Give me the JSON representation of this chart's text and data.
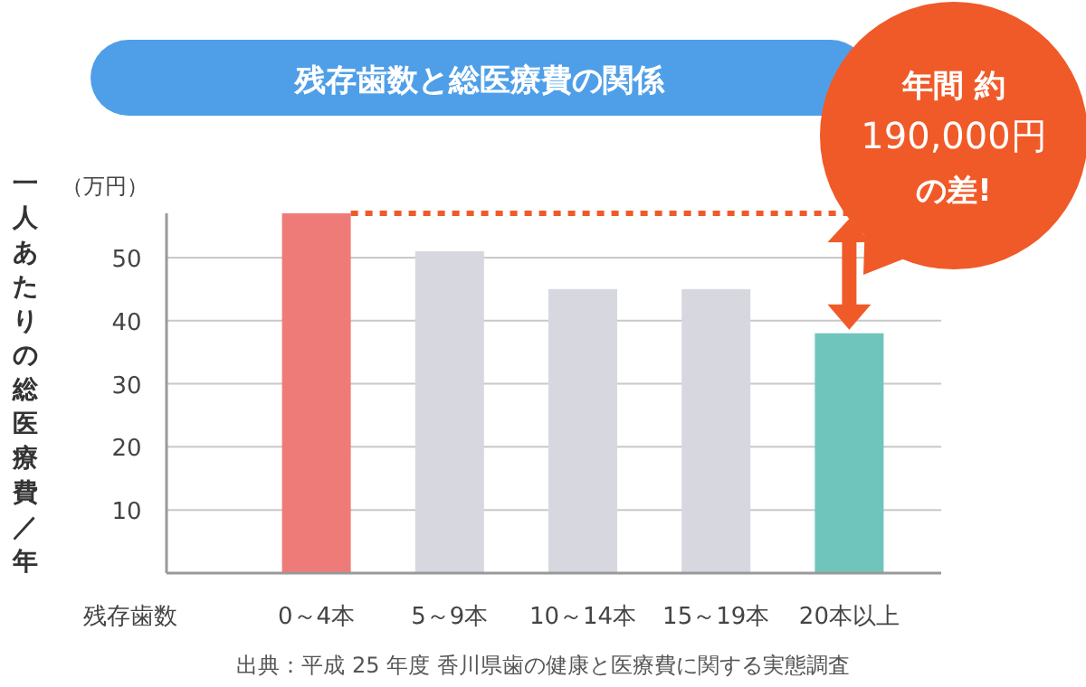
{
  "chart_data": {
    "type": "bar",
    "title": "残存歯数と総医療費の関係",
    "ylabel": "一人あたりの総医療費／年",
    "xlabel": "残存歯数",
    "categories": [
      "0～4本",
      "5～9本",
      "10～14本",
      "15～19本",
      "20本以上"
    ],
    "values": [
      57,
      51,
      45,
      45,
      38
    ],
    "colors": [
      "#ef7b78",
      "#d7d8df",
      "#d7d8df",
      "#d7d8df",
      "#6fc5bc"
    ],
    "ylim": [
      0,
      57
    ],
    "yticks": [
      10,
      20,
      30,
      40,
      50
    ],
    "grid": "y",
    "ref_lines": [
      {
        "axis": "y",
        "value": 57,
        "color": "#f05a28",
        "line_style": "dotted"
      }
    ],
    "annotations": [
      "（万円）",
      "年間 約",
      "190,000円",
      "の差!",
      "出典：平成 25 年度 香川県歯の健康と医療費に関する実態調査"
    ]
  }
}
